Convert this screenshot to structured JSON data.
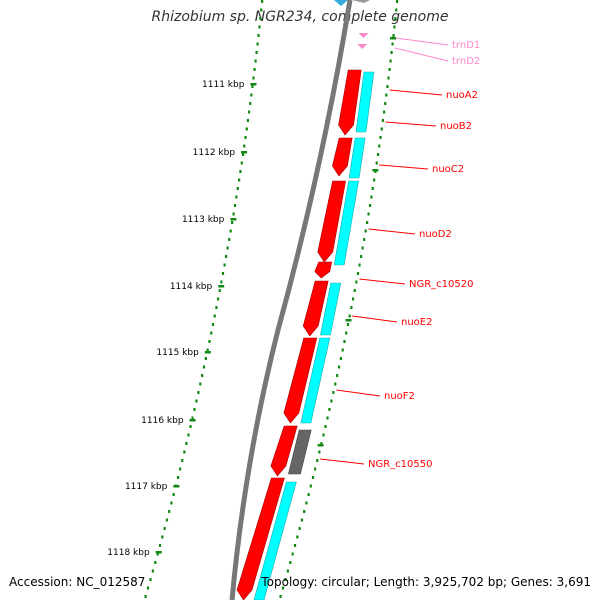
{
  "title": "Rhizobium sp. NGR234, complete genome",
  "accession": "Accession: NC_012587",
  "topology": "Topology: circular; Length: 3,925,702 bp; Genes: 3,691",
  "colors": {
    "gene_red": "#ff0000",
    "gene_cyan": "#00ffff",
    "gene_gray": "#666666",
    "trna_pink": "#ff88cc",
    "tick_green": "#118811",
    "backbone": "#777777"
  },
  "scale": {
    "ticks": [
      "1111 kbp",
      "1112 kbp",
      "1113 kbp",
      "1114 kbp",
      "1115 kbp",
      "1116 kbp",
      "1117 kbp",
      "1118 kbp"
    ]
  },
  "genes": [
    {
      "label": "trnD1",
      "type": "tRNA"
    },
    {
      "label": "trnD2",
      "type": "tRNA"
    },
    {
      "label": "nuoA2",
      "type": "CDS"
    },
    {
      "label": "nuoB2",
      "type": "CDS"
    },
    {
      "label": "nuoC2",
      "type": "CDS"
    },
    {
      "label": "nuoD2",
      "type": "CDS"
    },
    {
      "label": "NGR_c10520",
      "type": "CDS"
    },
    {
      "label": "nuoE2",
      "type": "CDS"
    },
    {
      "label": "nuoF2",
      "type": "CDS"
    },
    {
      "label": "NGR_c10550",
      "type": "pseudo"
    }
  ]
}
